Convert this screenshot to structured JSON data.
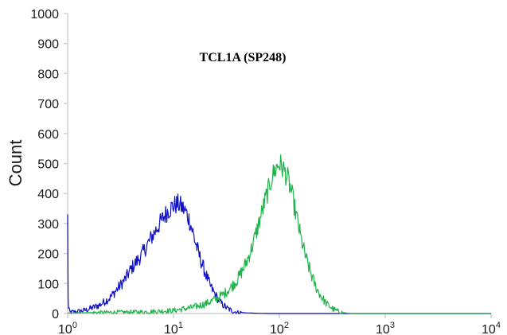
{
  "chart_data": {
    "type": "line",
    "title": "TCL1A (SP248)",
    "xlabel": "",
    "ylabel": "Count",
    "x_scale": "log",
    "xlim": [
      1,
      10000
    ],
    "ylim": [
      0,
      1000
    ],
    "y_ticks": [
      0,
      100,
      200,
      300,
      400,
      500,
      600,
      700,
      800,
      900,
      1000
    ],
    "x_ticks": [
      {
        "value": 1,
        "base": "10",
        "exp": "0"
      },
      {
        "value": 10,
        "base": "10",
        "exp": "1"
      },
      {
        "value": 100,
        "base": "10",
        "exp": "2"
      },
      {
        "value": 1000,
        "base": "10",
        "exp": "3"
      },
      {
        "value": 10000,
        "base": "10",
        "exp": "4"
      }
    ],
    "grid": false,
    "legend": "none",
    "series": [
      {
        "color": "#1010c8",
        "x": [
          1.0,
          1.01,
          1.02,
          1.05,
          1.2,
          1.5,
          2,
          2.5,
          3,
          3.5,
          4,
          5,
          6,
          7,
          8,
          9,
          10,
          11,
          12,
          13,
          14,
          15,
          16,
          18,
          20,
          22,
          25,
          28,
          32,
          36,
          40,
          50,
          60,
          80,
          100,
          200,
          10000
        ],
        "y": [
          320,
          60,
          15,
          5,
          6,
          12,
          28,
          52,
          85,
          115,
          150,
          195,
          245,
          285,
          320,
          345,
          360,
          365,
          355,
          340,
          315,
          280,
          240,
          180,
          135,
          95,
          60,
          35,
          18,
          8,
          4,
          2,
          1,
          0,
          0,
          0,
          0
        ]
      },
      {
        "color": "#22b24c",
        "x": [
          1,
          5,
          10,
          15,
          20,
          25,
          30,
          35,
          40,
          45,
          50,
          55,
          60,
          65,
          70,
          75,
          80,
          85,
          90,
          95,
          100,
          110,
          120,
          130,
          140,
          150,
          160,
          180,
          200,
          220,
          250,
          280,
          320,
          360,
          400,
          450,
          500,
          600,
          10000
        ],
        "y": [
          2,
          5,
          10,
          20,
          32,
          48,
          65,
          88,
          112,
          145,
          180,
          220,
          265,
          310,
          350,
          390,
          420,
          455,
          475,
          490,
          500,
          480,
          450,
          405,
          350,
          300,
          250,
          180,
          130,
          90,
          55,
          32,
          15,
          7,
          3,
          1,
          0,
          0,
          0
        ]
      }
    ]
  }
}
